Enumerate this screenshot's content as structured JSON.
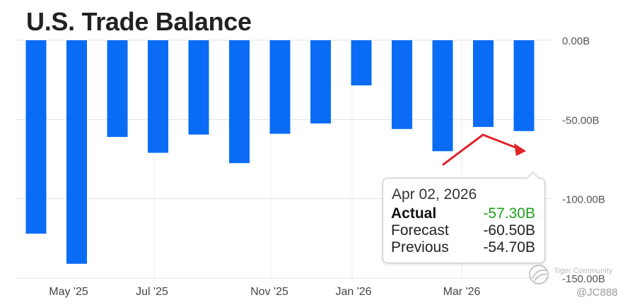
{
  "chart_data": {
    "type": "bar",
    "title": "U.S. Trade Balance",
    "xlabel": "",
    "ylabel": "",
    "ylim": [
      -150,
      0
    ],
    "yticks": [
      0,
      -50,
      -100,
      -150
    ],
    "ytick_labels": [
      "0.00B",
      "-50.00B",
      "-100.00B",
      "-150.00B"
    ],
    "xtick_labels": [
      "May '25",
      "Jul '25",
      "Nov '25",
      "Jan '26",
      "Mar '26"
    ],
    "values": [
      -122,
      -141,
      -61,
      -71,
      -59.5,
      -77.5,
      -59,
      -52.5,
      -28.5,
      -56,
      -70,
      -54.7,
      -57.3
    ],
    "bar_color": "#0a6cf5",
    "grid": true,
    "annotation_arrow_color": "#e0232b"
  },
  "tooltip": {
    "date": "Apr 02, 2026",
    "rows": [
      {
        "label": "Actual",
        "value": "-57.30B"
      },
      {
        "label": "Forecast",
        "value": "-60.50B"
      },
      {
        "label": "Previous",
        "value": "-54.70B"
      }
    ]
  },
  "watermark": {
    "brand": "Tiger Community",
    "user": "@JC888"
  }
}
